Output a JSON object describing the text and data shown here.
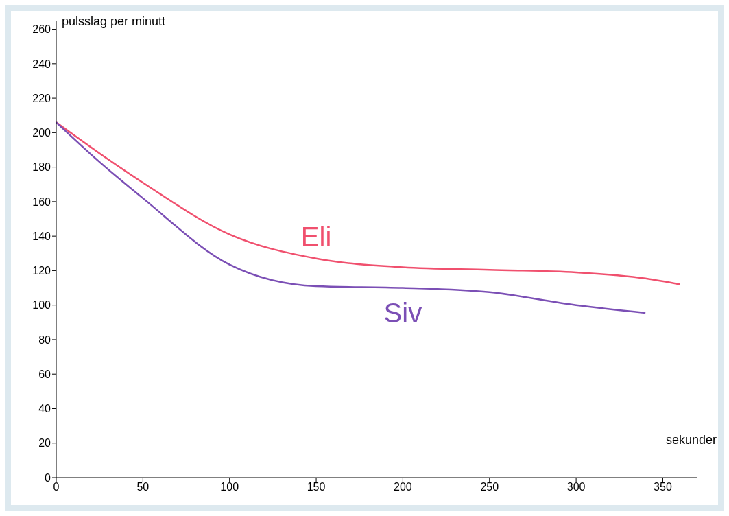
{
  "chart_data": {
    "type": "line",
    "xlabel": "sekunder",
    "ylabel": "pulsslag per minutt",
    "xlim": [
      0,
      370
    ],
    "ylim": [
      0,
      265
    ],
    "xticks": [
      0,
      50,
      100,
      150,
      200,
      250,
      300,
      350
    ],
    "yticks": [
      0,
      20,
      40,
      60,
      80,
      100,
      120,
      140,
      160,
      180,
      200,
      220,
      240,
      260
    ],
    "grid": false,
    "legend": false,
    "marker": "none",
    "line_style": "solid",
    "series": [
      {
        "name": "Eli",
        "color": "#f0506e",
        "x": [
          0,
          25,
          50,
          100,
          150,
          200,
          250,
          300,
          340,
          360
        ],
        "values": [
          206,
          188,
          171,
          141,
          127,
          122,
          120.5,
          119,
          115.5,
          112
        ]
      },
      {
        "name": "Siv",
        "color": "#7b4fb5",
        "x": [
          0,
          25,
          50,
          100,
          150,
          200,
          250,
          300,
          340
        ],
        "values": [
          206,
          183,
          162,
          123.5,
          111,
          110,
          107.5,
          100,
          95.5
        ]
      }
    ]
  }
}
